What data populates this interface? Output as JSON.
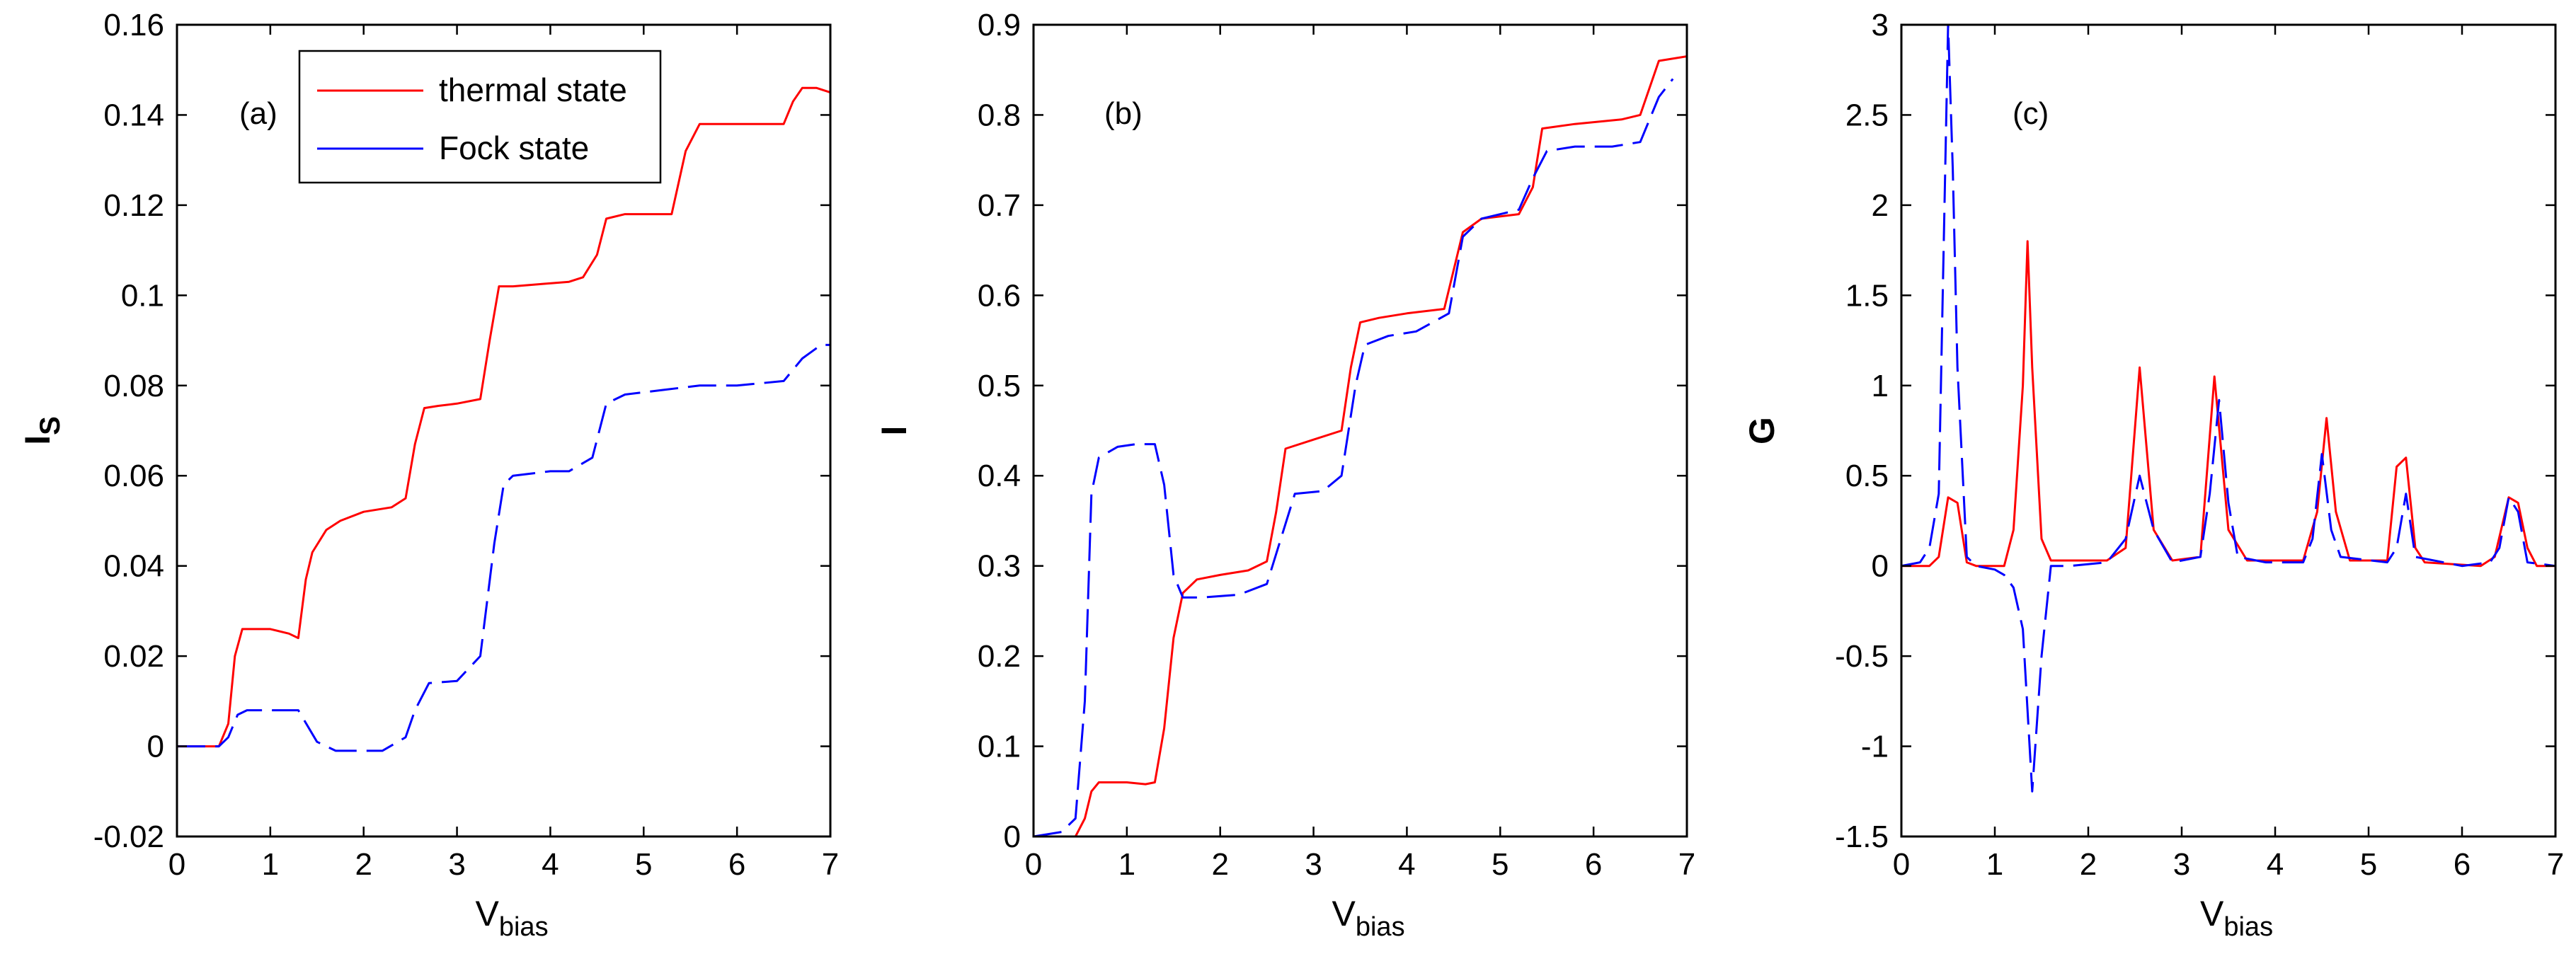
{
  "chart_data": [
    {
      "type": "line",
      "panel_label": "(a)",
      "ylabel_main": "I",
      "ylabel_sub": "S",
      "xlabel_main": "V",
      "xlabel_sub": "bias",
      "xlim": [
        0,
        7
      ],
      "ylim": [
        -0.02,
        0.16
      ],
      "xticks": [
        0,
        1,
        2,
        3,
        4,
        5,
        6,
        7
      ],
      "xtick_labels": [
        "0",
        "1",
        "2",
        "3",
        "4",
        "5",
        "6",
        "7"
      ],
      "yticks": [
        -0.02,
        0,
        0.02,
        0.04,
        0.06,
        0.08,
        0.1,
        0.12,
        0.14,
        0.16
      ],
      "ytick_labels": [
        "-0.02",
        "0",
        "0.02",
        "0.04",
        "0.06",
        "0.08",
        "0.1",
        "0.12",
        "0.14",
        "0.16"
      ],
      "legend": [
        {
          "label": "thermal state",
          "color": "#ff0000"
        },
        {
          "label": "Fock state",
          "color": "#0000ff"
        }
      ],
      "series": [
        {
          "name": "thermal state",
          "color": "#ff0000",
          "dash": "",
          "x": [
            0,
            0.45,
            0.55,
            0.62,
            0.7,
            1.0,
            1.2,
            1.3,
            1.38,
            1.45,
            1.6,
            1.75,
            2.0,
            2.3,
            2.45,
            2.55,
            2.65,
            2.8,
            3.0,
            3.25,
            3.35,
            3.45,
            3.6,
            3.9,
            4.2,
            4.35,
            4.5,
            4.6,
            4.8,
            5.1,
            5.3,
            5.45,
            5.6,
            6.0,
            6.3,
            6.5,
            6.6,
            6.7,
            6.85,
            7.0
          ],
          "y": [
            0,
            0,
            0.005,
            0.02,
            0.026,
            0.026,
            0.025,
            0.024,
            0.037,
            0.043,
            0.048,
            0.05,
            0.052,
            0.053,
            0.055,
            0.067,
            0.075,
            0.0755,
            0.076,
            0.077,
            0.09,
            0.102,
            0.102,
            0.1025,
            0.103,
            0.104,
            0.109,
            0.117,
            0.118,
            0.118,
            0.118,
            0.132,
            0.138,
            0.138,
            0.138,
            0.138,
            0.143,
            0.146,
            0.146,
            0.145
          ]
        },
        {
          "name": "Fock state",
          "color": "#0000ff",
          "dash": "40 14",
          "x": [
            0,
            0.45,
            0.55,
            0.65,
            0.75,
            1.0,
            1.3,
            1.5,
            1.7,
            1.9,
            2.2,
            2.45,
            2.55,
            2.7,
            3.0,
            3.25,
            3.4,
            3.5,
            3.6,
            4.0,
            4.2,
            4.45,
            4.6,
            4.8,
            5.2,
            5.6,
            6.0,
            6.5,
            6.7,
            6.9,
            7.0
          ],
          "y": [
            0,
            0,
            0.002,
            0.007,
            0.008,
            0.008,
            0.008,
            0.001,
            -0.001,
            -0.001,
            -0.001,
            0.002,
            0.008,
            0.014,
            0.0145,
            0.02,
            0.045,
            0.058,
            0.06,
            0.061,
            0.061,
            0.064,
            0.076,
            0.078,
            0.079,
            0.08,
            0.08,
            0.081,
            0.086,
            0.089,
            0.089
          ]
        }
      ]
    },
    {
      "type": "line",
      "panel_label": "(b)",
      "ylabel_main": "I",
      "ylabel_sub": "",
      "xlabel_main": "V",
      "xlabel_sub": "bias",
      "xlim": [
        0,
        7
      ],
      "ylim": [
        0,
        0.9
      ],
      "xticks": [
        0,
        1,
        2,
        3,
        4,
        5,
        6,
        7
      ],
      "xtick_labels": [
        "0",
        "1",
        "2",
        "3",
        "4",
        "5",
        "6",
        "7"
      ],
      "yticks": [
        0,
        0.1,
        0.2,
        0.3,
        0.4,
        0.5,
        0.6,
        0.7,
        0.8,
        0.9
      ],
      "ytick_labels": [
        "0",
        "0.1",
        "0.2",
        "0.3",
        "0.4",
        "0.5",
        "0.6",
        "0.7",
        "0.8",
        "0.9"
      ],
      "series": [
        {
          "name": "thermal state",
          "color": "#ff0000",
          "dash": "",
          "x": [
            0,
            0.45,
            0.55,
            0.62,
            0.7,
            1.0,
            1.2,
            1.3,
            1.4,
            1.5,
            1.6,
            1.75,
            2.0,
            2.3,
            2.5,
            2.6,
            2.7,
            3.0,
            3.3,
            3.4,
            3.5,
            3.7,
            4.0,
            4.4,
            4.6,
            4.8,
            5.2,
            5.35,
            5.45,
            5.8,
            6.3,
            6.5,
            6.7,
            7.0
          ],
          "y": [
            0,
            0,
            0.02,
            0.05,
            0.06,
            0.06,
            0.058,
            0.06,
            0.12,
            0.22,
            0.27,
            0.285,
            0.29,
            0.295,
            0.305,
            0.36,
            0.43,
            0.44,
            0.45,
            0.52,
            0.57,
            0.575,
            0.58,
            0.585,
            0.67,
            0.685,
            0.69,
            0.72,
            0.785,
            0.79,
            0.795,
            0.8,
            0.86,
            0.865
          ]
        },
        {
          "name": "Fock state",
          "color": "#0000ff",
          "dash": "40 14",
          "x": [
            0,
            0.3,
            0.45,
            0.55,
            0.62,
            0.7,
            0.9,
            1.1,
            1.3,
            1.4,
            1.5,
            1.6,
            1.8,
            2.2,
            2.5,
            2.65,
            2.8,
            3.1,
            3.3,
            3.45,
            3.55,
            3.8,
            4.1,
            4.45,
            4.6,
            4.8,
            5.2,
            5.35,
            5.5,
            5.8,
            6.2,
            6.5,
            6.7,
            6.85
          ],
          "y": [
            0,
            0.005,
            0.02,
            0.15,
            0.38,
            0.42,
            0.432,
            0.435,
            0.435,
            0.39,
            0.29,
            0.265,
            0.265,
            0.268,
            0.28,
            0.33,
            0.38,
            0.383,
            0.4,
            0.5,
            0.545,
            0.555,
            0.56,
            0.58,
            0.665,
            0.685,
            0.695,
            0.73,
            0.76,
            0.765,
            0.765,
            0.77,
            0.82,
            0.84
          ]
        }
      ]
    },
    {
      "type": "line",
      "panel_label": "(c)",
      "ylabel_main": "G",
      "ylabel_sub": "",
      "xlabel_main": "V",
      "xlabel_sub": "bias",
      "xlim": [
        0,
        7
      ],
      "ylim": [
        -1.5,
        3
      ],
      "xticks": [
        0,
        1,
        2,
        3,
        4,
        5,
        6,
        7
      ],
      "xtick_labels": [
        "0",
        "1",
        "2",
        "3",
        "4",
        "5",
        "6",
        "7"
      ],
      "yticks": [
        -1.5,
        -1,
        -0.5,
        0,
        0.5,
        1,
        1.5,
        2,
        2.5,
        3
      ],
      "ytick_labels": [
        "-1.5",
        "-1",
        "-0.5",
        "0",
        "0.5",
        "1",
        "1.5",
        "2",
        "2.5",
        "3"
      ],
      "series": [
        {
          "name": "thermal state",
          "color": "#ff0000",
          "dash": "",
          "x": [
            0,
            0.3,
            0.4,
            0.5,
            0.6,
            0.7,
            0.8,
            1.1,
            1.2,
            1.3,
            1.35,
            1.4,
            1.5,
            1.6,
            2.2,
            2.4,
            2.55,
            2.7,
            2.9,
            3.2,
            3.35,
            3.5,
            3.7,
            4.3,
            4.45,
            4.55,
            4.65,
            4.8,
            5.2,
            5.3,
            5.4,
            5.5,
            5.6,
            6.2,
            6.35,
            6.5,
            6.6,
            6.7,
            6.8,
            7.0
          ],
          "y": [
            0,
            0,
            0.05,
            0.38,
            0.35,
            0.02,
            0,
            0,
            0.2,
            1.0,
            1.8,
            1.1,
            0.15,
            0.03,
            0.03,
            0.1,
            1.1,
            0.2,
            0.03,
            0.05,
            1.05,
            0.2,
            0.03,
            0.03,
            0.3,
            0.82,
            0.3,
            0.03,
            0.03,
            0.55,
            0.6,
            0.1,
            0.02,
            0,
            0.05,
            0.38,
            0.35,
            0.1,
            0,
            0
          ]
        },
        {
          "name": "Fock state",
          "color": "#0000ff",
          "dash": "40 14",
          "x": [
            0,
            0.2,
            0.3,
            0.4,
            0.5,
            0.55,
            0.6,
            0.7,
            0.8,
            1.0,
            1.1,
            1.2,
            1.3,
            1.4,
            1.5,
            1.6,
            1.8,
            2.2,
            2.4,
            2.55,
            2.7,
            2.9,
            3.2,
            3.3,
            3.4,
            3.5,
            3.6,
            3.9,
            4.3,
            4.4,
            4.5,
            4.6,
            4.7,
            5.2,
            5.3,
            5.4,
            5.5,
            6.0,
            6.3,
            6.4,
            6.5,
            6.6,
            6.7,
            7.0
          ],
          "y": [
            0,
            0.02,
            0.1,
            0.4,
            3.0,
            2.2,
            1.1,
            0.05,
            0,
            -0.02,
            -0.05,
            -0.12,
            -0.35,
            -1.25,
            -0.5,
            0,
            0,
            0.02,
            0.15,
            0.5,
            0.2,
            0.02,
            0.05,
            0.4,
            0.92,
            0.35,
            0.05,
            0.02,
            0.02,
            0.15,
            0.62,
            0.2,
            0.05,
            0.02,
            0.1,
            0.4,
            0.05,
            0,
            0.02,
            0.1,
            0.38,
            0.3,
            0.02,
            0
          ]
        }
      ]
    }
  ]
}
